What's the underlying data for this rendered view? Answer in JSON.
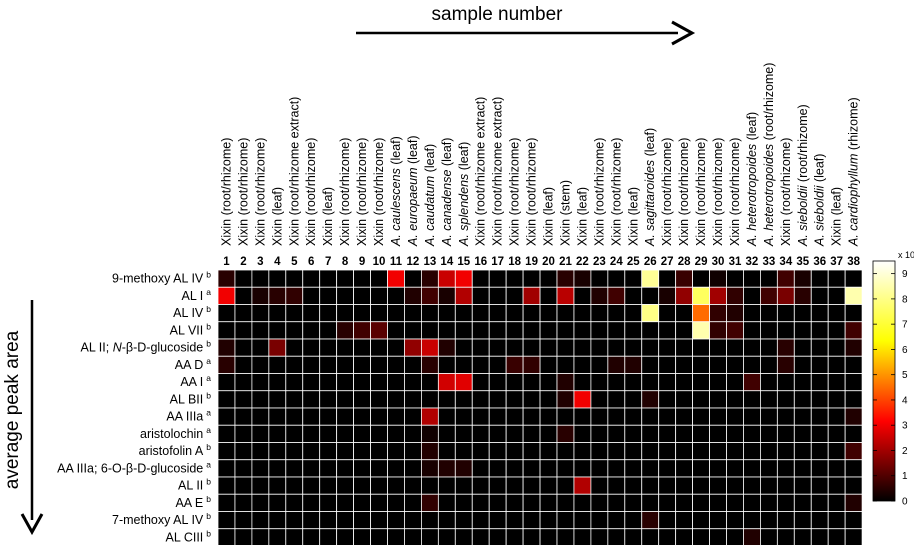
{
  "chart_data": {
    "type": "heatmap",
    "title": "",
    "xlabel": "sample number",
    "ylabel": "average peak area",
    "colorbar": {
      "colormap": "hot",
      "min": 0,
      "max": 9.5,
      "ticks": [
        0,
        1,
        2,
        3,
        4,
        5,
        6,
        7,
        8,
        9
      ],
      "multiplier": "x 10",
      "exponent": "7"
    },
    "columns": [
      {
        "num": "1",
        "ital": "",
        "label": "Xixin (root/rhizome)"
      },
      {
        "num": "2",
        "ital": "",
        "label": "Xixin (root/rhizome)"
      },
      {
        "num": "3",
        "ital": "",
        "label": "Xixin (root/rhizome)"
      },
      {
        "num": "4",
        "ital": "",
        "label": "Xixin (leaf)"
      },
      {
        "num": "5",
        "ital": "",
        "label": "Xixin (root/rhizome extract)"
      },
      {
        "num": "6",
        "ital": "",
        "label": "Xixin (root/rhizome)"
      },
      {
        "num": "7",
        "ital": "",
        "label": "Xixin (leaf)"
      },
      {
        "num": "8",
        "ital": "",
        "label": "Xixin (root/rhizome)"
      },
      {
        "num": "9",
        "ital": "",
        "label": "Xixin (root/rhizome)"
      },
      {
        "num": "10",
        "ital": "",
        "label": "Xixin (root/rhizome)"
      },
      {
        "num": "11",
        "ital": "A. caulescens",
        "label": " (leaf)"
      },
      {
        "num": "12",
        "ital": "A. europaeum",
        "label": " (leaf)"
      },
      {
        "num": "13",
        "ital": "A. caudatum",
        "label": " (leaf)"
      },
      {
        "num": "14",
        "ital": "A. canadense",
        "label": " (leaf)"
      },
      {
        "num": "15",
        "ital": "A. splendens",
        "label": " (leaf)"
      },
      {
        "num": "16",
        "ital": "",
        "label": "Xixin (root/rhizome extract)"
      },
      {
        "num": "17",
        "ital": "",
        "label": "Xixin (root/rhizome extract)"
      },
      {
        "num": "18",
        "ital": "",
        "label": "Xixin (root/rhizome)"
      },
      {
        "num": "19",
        "ital": "",
        "label": "Xixin (root/rhizome)"
      },
      {
        "num": "20",
        "ital": "",
        "label": "Xixin (leaf)"
      },
      {
        "num": "21",
        "ital": "",
        "label": "Xixin (stem)"
      },
      {
        "num": "22",
        "ital": "",
        "label": "Xixin (leaf)"
      },
      {
        "num": "23",
        "ital": "",
        "label": "Xixin (root/rhizome)"
      },
      {
        "num": "24",
        "ital": "",
        "label": "Xixin (root/rhizome)"
      },
      {
        "num": "25",
        "ital": "",
        "label": "Xixin (leaf)"
      },
      {
        "num": "26",
        "ital": "A. sagittaroides",
        "label": " (leaf)"
      },
      {
        "num": "27",
        "ital": "",
        "label": "Xixin (root/rhizome)"
      },
      {
        "num": "28",
        "ital": "",
        "label": "Xixin (root/rhizome)"
      },
      {
        "num": "29",
        "ital": "",
        "label": "Xixin (root/rhizome)"
      },
      {
        "num": "30",
        "ital": "",
        "label": "Xixin (root/rhizome)"
      },
      {
        "num": "31",
        "ital": "",
        "label": "Xixin (root/rhizome)"
      },
      {
        "num": "32",
        "ital": "A. heterotropoides",
        "label": " (leaf)"
      },
      {
        "num": "33",
        "ital": "A. heterotropoides",
        "label": " (root/rhizome)"
      },
      {
        "num": "34",
        "ital": "",
        "label": "Xixin (root/rhizome)"
      },
      {
        "num": "35",
        "ital": "A. sieboldii",
        "label": " (root/rhizome)"
      },
      {
        "num": "36",
        "ital": "A. sieboldii",
        "label": " (leaf)"
      },
      {
        "num": "37",
        "ital": "",
        "label": "Xixin (leaf)"
      },
      {
        "num": "38",
        "ital": "A. cardiophyllum",
        "label": " (rhizome)"
      }
    ],
    "rows": [
      {
        "pre": "9-methoxy AL IV",
        "ital": "",
        "post": "",
        "sup": "b"
      },
      {
        "pre": "AL I",
        "ital": "",
        "post": "",
        "sup": "a"
      },
      {
        "pre": "AL IV",
        "ital": "",
        "post": "",
        "sup": "b"
      },
      {
        "pre": "AL VII",
        "ital": "",
        "post": "",
        "sup": "b"
      },
      {
        "pre": "AL II;  ",
        "ital": "N",
        "post": "-β-D-glucoside",
        "sup": "b"
      },
      {
        "pre": "AA D",
        "ital": "",
        "post": "",
        "sup": "a"
      },
      {
        "pre": "AA I",
        "ital": "",
        "post": "",
        "sup": "a"
      },
      {
        "pre": "AL BII",
        "ital": "",
        "post": "",
        "sup": "b"
      },
      {
        "pre": "AA IIIa",
        "ital": "",
        "post": "",
        "sup": "a"
      },
      {
        "pre": "aristolochin",
        "ital": "",
        "post": "",
        "sup": "a"
      },
      {
        "pre": "aristofolin A",
        "ital": "",
        "post": "",
        "sup": "b"
      },
      {
        "pre": "AA IIIa; 6-O-β-D-glucoside",
        "ital": "",
        "post": "",
        "sup": "a"
      },
      {
        "pre": "AL II",
        "ital": "",
        "post": "",
        "sup": "b"
      },
      {
        "pre": "AA E",
        "ital": "",
        "post": "",
        "sup": "b"
      },
      {
        "pre": "7-methoxy AL IV",
        "ital": "",
        "post": "",
        "sup": "b"
      },
      {
        "pre": "AL CIII",
        "ital": "",
        "post": "",
        "sup": "b"
      }
    ],
    "values": [
      [
        0.5,
        0,
        0,
        0,
        0,
        0,
        0,
        0,
        0,
        0,
        3.0,
        0,
        0.5,
        2.5,
        3.0,
        0,
        0,
        0,
        0,
        0,
        0.5,
        0.3,
        0,
        0,
        0,
        8.2,
        0,
        0.7,
        0,
        0.2,
        0,
        0,
        0,
        0.8,
        0.3,
        0,
        0,
        0
      ],
      [
        3.0,
        0,
        0.3,
        0.5,
        0.6,
        0,
        0,
        0,
        0,
        0,
        0,
        0.4,
        0.8,
        0.3,
        2.2,
        0,
        0,
        0,
        2.0,
        0,
        2.3,
        0,
        0.4,
        0.8,
        0,
        0,
        0.3,
        1.8,
        7.5,
        2.0,
        0.6,
        0,
        0.8,
        1.5,
        0.5,
        0,
        0,
        8.5
      ],
      [
        0,
        0,
        0,
        0,
        0,
        0,
        0,
        0,
        0,
        0,
        0,
        0,
        0,
        0,
        0,
        0,
        0,
        0,
        0,
        0,
        0,
        0,
        0,
        0,
        0,
        8.0,
        0,
        0,
        4.5,
        0.6,
        0.4,
        0,
        0,
        0,
        0,
        0,
        0,
        0
      ],
      [
        0,
        0,
        0,
        0,
        0,
        0,
        0,
        0.5,
        0.8,
        1.1,
        0,
        0,
        0,
        0,
        0,
        0,
        0,
        0,
        0,
        0,
        0,
        0,
        0,
        0,
        0,
        0,
        0,
        0,
        8.5,
        0.6,
        0.8,
        0,
        0,
        0,
        0,
        0,
        0,
        0.8
      ],
      [
        0.4,
        0,
        0,
        1.5,
        0,
        0,
        0,
        0,
        0,
        0,
        0,
        1.8,
        2.5,
        0.4,
        0,
        0,
        0,
        0,
        0,
        0,
        0,
        0,
        0,
        0,
        0,
        0,
        0,
        0,
        0,
        0,
        0,
        0,
        0,
        0.5,
        0,
        0,
        0,
        0.4
      ],
      [
        0.5,
        0,
        0,
        0,
        0,
        0,
        0,
        0,
        0,
        0,
        0,
        0,
        0.5,
        0,
        0,
        0,
        0,
        0.7,
        0.6,
        0,
        0,
        0,
        0,
        0.4,
        0.4,
        0,
        0,
        0,
        0,
        0,
        0,
        0,
        0,
        0.5,
        0,
        0,
        0,
        0
      ],
      [
        0,
        0,
        0,
        0,
        0,
        0,
        0,
        0,
        0,
        0,
        0,
        0,
        0,
        2.6,
        2.8,
        0,
        0,
        0,
        0,
        0,
        0.4,
        0,
        0,
        0,
        0,
        0,
        0,
        0,
        0,
        0,
        0,
        0.8,
        0,
        0,
        0,
        0,
        0,
        0
      ],
      [
        0,
        0,
        0,
        0,
        0,
        0,
        0,
        0,
        0,
        0,
        0,
        0,
        0,
        0,
        0,
        0,
        0,
        0,
        0,
        0,
        0.4,
        3.0,
        0,
        0,
        0,
        0.4,
        0,
        0,
        0,
        0,
        0,
        0,
        0,
        0,
        0,
        0,
        0,
        0
      ],
      [
        0,
        0,
        0,
        0,
        0,
        0,
        0,
        0,
        0,
        0,
        0,
        0,
        2.2,
        0,
        0,
        0,
        0,
        0,
        0,
        0,
        0,
        0,
        0,
        0,
        0,
        0,
        0,
        0,
        0,
        0,
        0,
        0,
        0,
        0,
        0,
        0,
        0,
        0.4
      ],
      [
        0,
        0,
        0,
        0,
        0,
        0,
        0,
        0,
        0,
        0,
        0,
        0,
        0.2,
        0,
        0,
        0,
        0,
        0,
        0,
        0,
        0.5,
        0,
        0,
        0,
        0,
        0,
        0,
        0,
        0,
        0,
        0,
        0,
        0,
        0,
        0,
        0,
        0,
        0
      ],
      [
        0,
        0,
        0,
        0,
        0,
        0,
        0,
        0,
        0,
        0,
        0,
        0,
        0.4,
        0,
        0,
        0,
        0,
        0,
        0,
        0,
        0,
        0,
        0,
        0,
        0,
        0,
        0,
        0,
        0,
        0,
        0,
        0,
        0,
        0,
        0,
        0,
        0,
        0.8
      ],
      [
        0,
        0,
        0,
        0,
        0,
        0,
        0,
        0,
        0,
        0,
        0,
        0,
        0.3,
        0.4,
        0.4,
        0,
        0,
        0,
        0,
        0,
        0,
        0,
        0,
        0,
        0,
        0,
        0,
        0,
        0,
        0,
        0,
        0,
        0,
        0,
        0,
        0,
        0,
        0
      ],
      [
        0,
        0,
        0,
        0,
        0,
        0,
        0,
        0,
        0,
        0,
        0,
        0,
        0,
        0,
        0,
        0,
        0,
        0,
        0,
        0,
        0,
        2.2,
        0,
        0,
        0,
        0,
        0,
        0,
        0,
        0,
        0,
        0,
        0,
        0,
        0,
        0,
        0,
        0
      ],
      [
        0,
        0,
        0,
        0,
        0,
        0,
        0,
        0,
        0,
        0,
        0,
        0,
        0.6,
        0,
        0,
        0,
        0,
        0,
        0,
        0,
        0,
        0,
        0,
        0,
        0,
        0,
        0,
        0,
        0,
        0,
        0,
        0,
        0,
        0,
        0,
        0,
        0,
        0.4
      ],
      [
        0,
        0,
        0,
        0,
        0,
        0,
        0,
        0,
        0,
        0,
        0,
        0,
        0,
        0,
        0,
        0,
        0,
        0,
        0,
        0,
        0,
        0,
        0,
        0,
        0,
        0.5,
        0,
        0,
        0,
        0,
        0,
        0,
        0,
        0,
        0,
        0,
        0,
        0
      ],
      [
        0,
        0,
        0,
        0,
        0,
        0,
        0,
        0,
        0,
        0,
        0,
        0,
        0,
        0,
        0,
        0,
        0,
        0,
        0,
        0,
        0,
        0,
        0,
        0,
        0,
        0,
        0,
        0,
        0,
        0,
        0,
        0.4,
        0,
        0,
        0,
        0,
        0,
        0
      ]
    ]
  }
}
